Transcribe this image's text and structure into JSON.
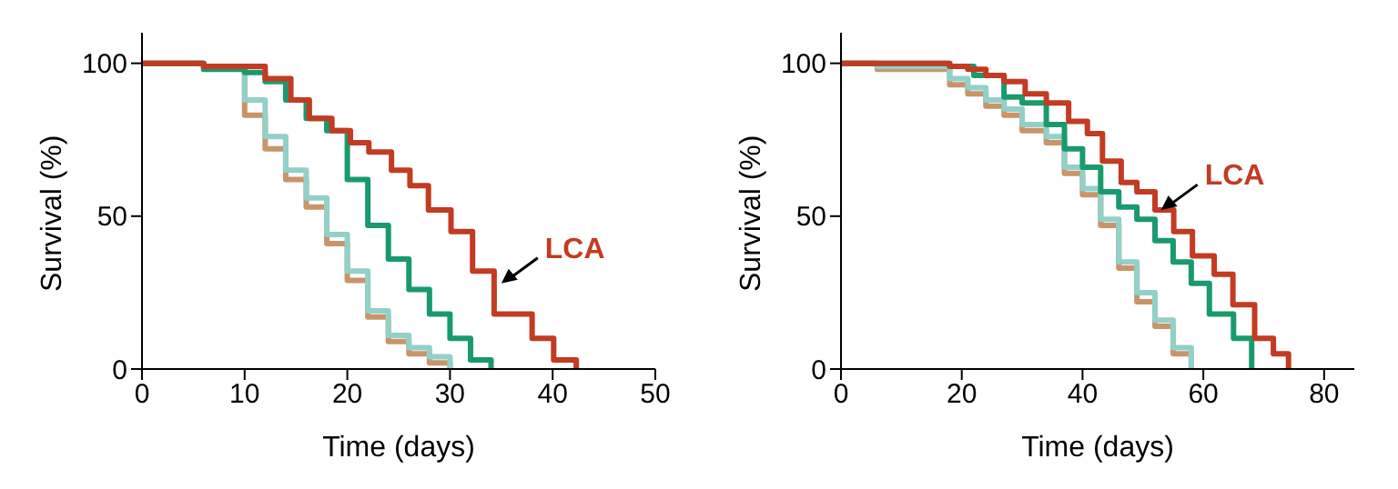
{
  "chart_data": [
    {
      "type": "step",
      "xlabel": "Time (days)",
      "ylabel": "Survival (%)",
      "xlim": [
        0,
        50
      ],
      "xticks": [
        0,
        10,
        20,
        30,
        40,
        50
      ],
      "ylim": [
        0,
        110
      ],
      "yticks": [
        0,
        50,
        100
      ],
      "marker": "none",
      "annotations": [
        {
          "text": "LCA",
          "x": 35,
          "y": 28
        }
      ],
      "series": [
        {
          "color": "#c8956a",
          "x": [
            0,
            6,
            10,
            12,
            14,
            16,
            18,
            20,
            22,
            24,
            26,
            28,
            30
          ],
          "values": [
            100,
            99,
            83,
            72,
            62,
            53,
            41,
            29,
            17,
            9,
            5,
            2,
            0
          ]
        },
        {
          "color": "#92d0c8",
          "x": [
            0,
            6,
            10,
            12,
            14,
            16,
            18,
            20,
            22,
            24,
            26,
            28,
            30
          ],
          "values": [
            100,
            99,
            88,
            76,
            65,
            56,
            44,
            32,
            19,
            11,
            7,
            4,
            0
          ]
        },
        {
          "color": "#1a9a6c",
          "x": [
            0,
            6,
            10,
            12,
            14,
            16,
            18,
            20,
            22,
            24,
            26,
            28,
            30,
            32,
            34
          ],
          "values": [
            100,
            98,
            97,
            94,
            88,
            82,
            78,
            62,
            47,
            36,
            26,
            18,
            10,
            3,
            0
          ]
        },
        {
          "color": "#c23b22",
          "x": [
            0,
            6,
            12,
            14.5,
            16.3,
            18.5,
            20.3,
            22.1,
            24.3,
            26.1,
            27.9,
            30.1,
            32.2,
            34.3,
            38,
            40.1,
            42.3
          ],
          "values": [
            100,
            99,
            95,
            88,
            82,
            78,
            74,
            71,
            65,
            60,
            52,
            45,
            32,
            18,
            10,
            3,
            0
          ]
        }
      ]
    },
    {
      "type": "step",
      "xlabel": "Time (days)",
      "ylabel": "Survival (%)",
      "xlim": [
        0,
        85
      ],
      "xticks": [
        0,
        20,
        40,
        60,
        80
      ],
      "ylim": [
        0,
        110
      ],
      "yticks": [
        0,
        50,
        100
      ],
      "marker": "none",
      "annotations": [
        {
          "text": "LCA",
          "x": 53,
          "y": 52
        }
      ],
      "series": [
        {
          "color": "#c8956a",
          "x": [
            0,
            6,
            18,
            21,
            24,
            27,
            30,
            34,
            37,
            40,
            43,
            46,
            49,
            52,
            55,
            58
          ],
          "values": [
            100,
            98,
            93,
            90,
            86,
            83,
            78,
            74,
            64,
            57,
            47,
            33,
            22,
            14,
            5,
            0
          ]
        },
        {
          "color": "#92d0c8",
          "x": [
            0,
            6,
            18,
            21,
            24,
            27,
            30,
            34,
            37,
            40,
            43,
            46,
            49,
            52,
            55,
            58
          ],
          "values": [
            100,
            99,
            95,
            92,
            88,
            85,
            80,
            76,
            66,
            59,
            49,
            35,
            25,
            16,
            7,
            0
          ]
        },
        {
          "color": "#1a9a6c",
          "x": [
            0,
            18,
            22,
            27,
            30,
            34,
            37,
            40,
            43,
            46,
            49,
            52,
            55,
            58,
            61,
            65,
            68
          ],
          "values": [
            100,
            99,
            96,
            89,
            87,
            80,
            72,
            66,
            58,
            53,
            49,
            42,
            35,
            28,
            18,
            10,
            0
          ]
        },
        {
          "color": "#c23b22",
          "x": [
            0,
            18,
            21,
            24,
            27,
            30.5,
            34,
            37.7,
            40.8,
            43.3,
            46.4,
            49,
            52,
            55.1,
            58.2,
            61.8,
            64.9,
            68.5,
            71.6,
            74.1
          ],
          "values": [
            100,
            99,
            98,
            96,
            94,
            90,
            87,
            81,
            77,
            68,
            61,
            58,
            52,
            45,
            37,
            31,
            21,
            10,
            5,
            0
          ]
        }
      ]
    }
  ]
}
